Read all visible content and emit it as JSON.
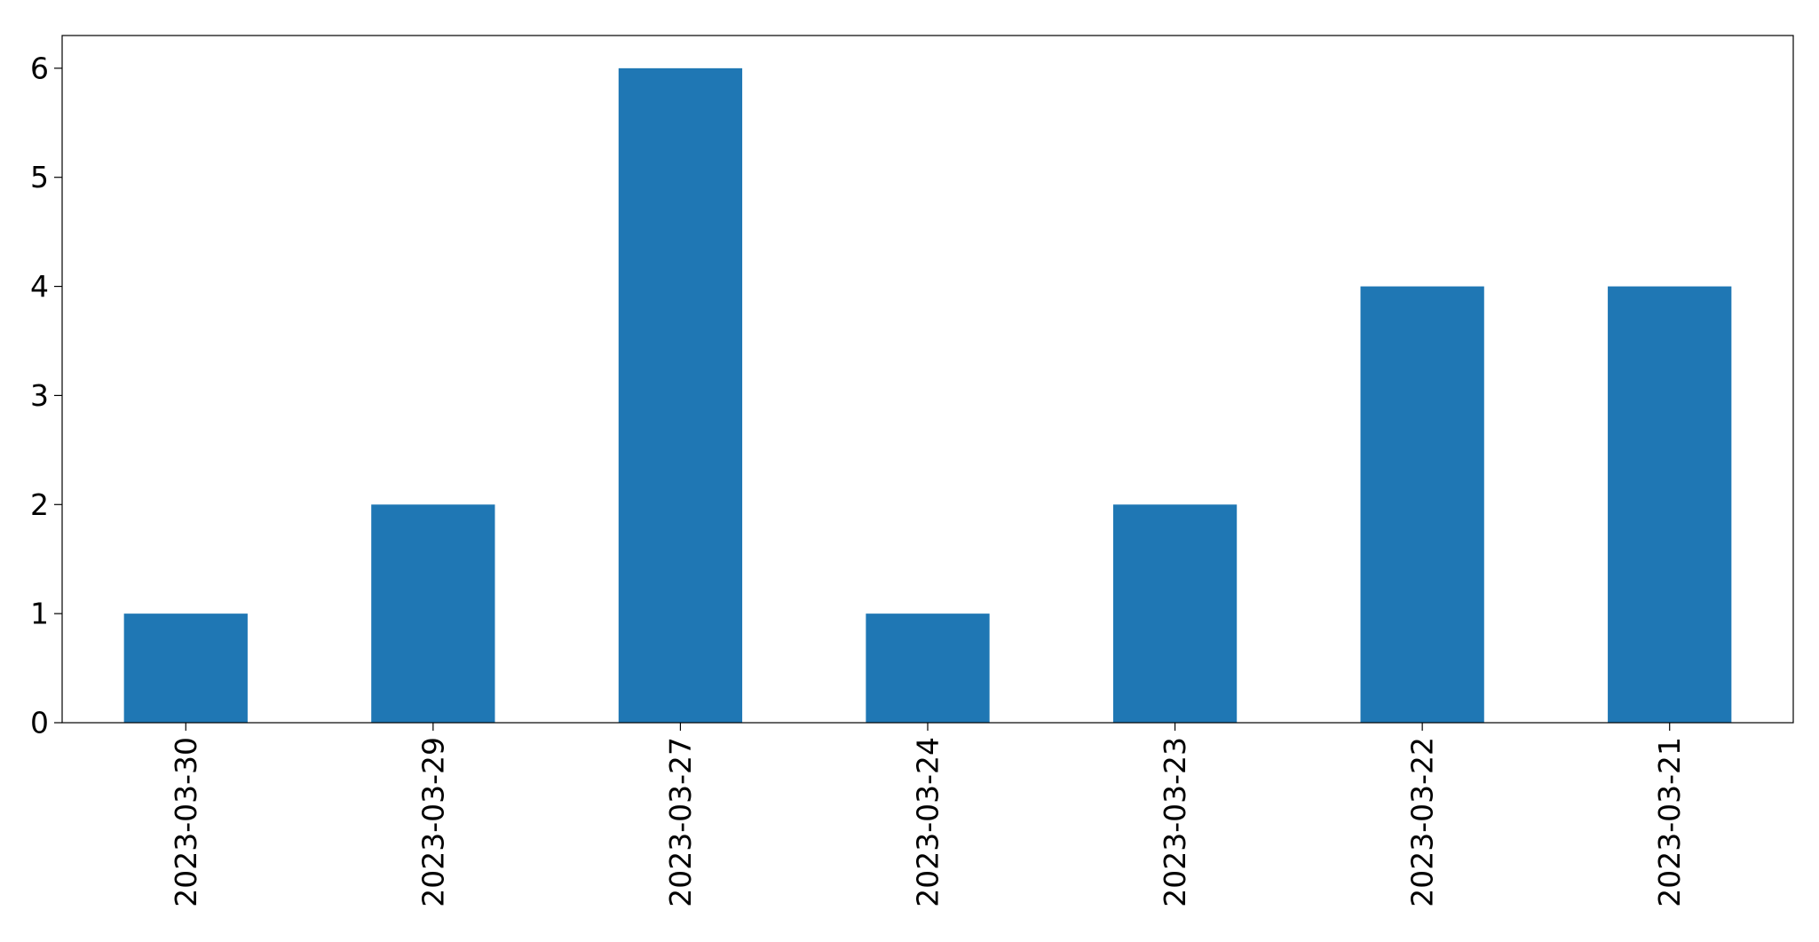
{
  "chart_data": {
    "type": "bar",
    "categories": [
      "2023-03-30",
      "2023-03-29",
      "2023-03-27",
      "2023-03-24",
      "2023-03-23",
      "2023-03-22",
      "2023-03-21"
    ],
    "values": [
      1,
      2,
      6,
      1,
      2,
      4,
      4
    ],
    "yticks": [
      "0",
      "1",
      "2",
      "3",
      "4",
      "5",
      "6"
    ],
    "ylim": [
      0,
      6.3
    ],
    "grid": false,
    "legend": "none",
    "bar_color": "#1f77b4"
  }
}
